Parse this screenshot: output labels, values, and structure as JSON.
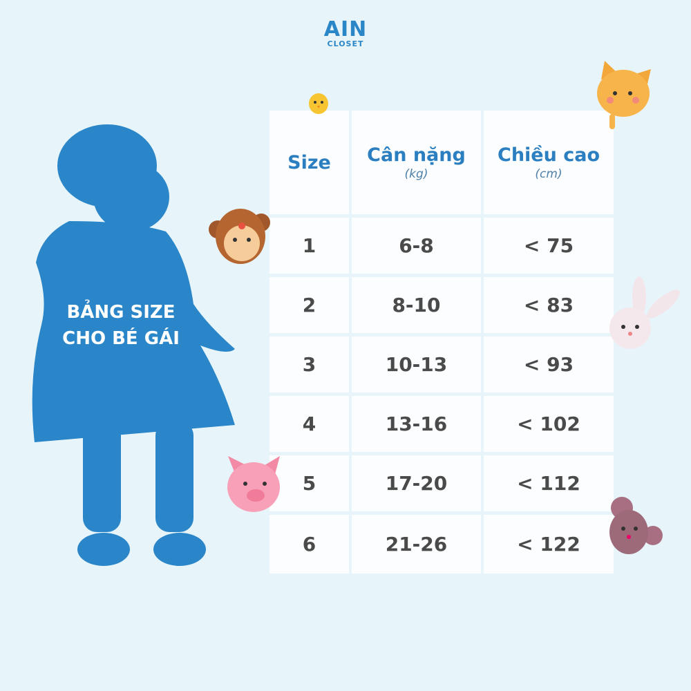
{
  "logo": {
    "line1": "AIN",
    "line2": "CLOSET"
  },
  "title": {
    "line1": "BẢNG SIZE",
    "line2": "CHO BÉ GÁI"
  },
  "table": {
    "headers": [
      {
        "label": "Size",
        "unit": ""
      },
      {
        "label": "Cân nặng",
        "unit": "(kg)"
      },
      {
        "label": "Chiều cao",
        "unit": "(cm)"
      }
    ],
    "rows": [
      [
        "1",
        "6-8",
        "< 75"
      ],
      [
        "2",
        "8-10",
        "< 83"
      ],
      [
        "3",
        "10-13",
        "< 93"
      ],
      [
        "4",
        "13-16",
        "< 102"
      ],
      [
        "5",
        "17-20",
        "< 112"
      ],
      [
        "6",
        "21-26",
        "< 122"
      ]
    ]
  },
  "colors": {
    "background": "#e7f5fb",
    "silhouette": "#2a86c8",
    "header_text": "#2b7fc0",
    "cell_text": "#4a4a4a"
  },
  "decorations": [
    "chick-icon",
    "cat-icon",
    "monkey-icon",
    "rabbit-icon",
    "pig-icon",
    "mouse-icon",
    "girl-silhouette"
  ]
}
